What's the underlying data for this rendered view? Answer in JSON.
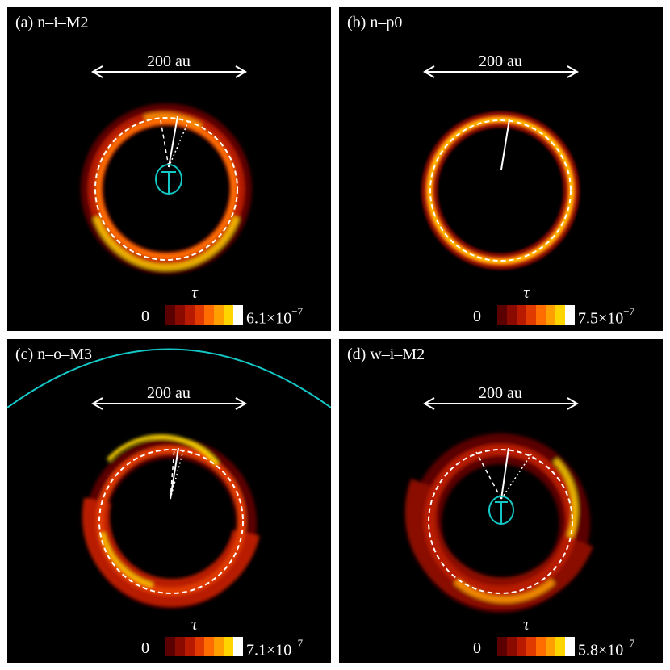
{
  "colormap": [
    "#5a0000",
    "#8a0a00",
    "#b81a00",
    "#e03a00",
    "#ff6c00",
    "#ffa000",
    "#ffd500",
    "#ffffff"
  ],
  "disk_colors": {
    "background": "#000000",
    "ellipse": "#14c8c8"
  },
  "panels": [
    {
      "label": "(a) n–i–M2",
      "scale_label": "200 au",
      "tau_symbol": "τ",
      "cb_min": "0",
      "cb_max_mantissa": "6.1×10",
      "cb_max_exp": "−7"
    },
    {
      "label": "(b) n–p0",
      "scale_label": "200 au",
      "tau_symbol": "τ",
      "cb_min": "0",
      "cb_max_mantissa": "7.5×10",
      "cb_max_exp": "−7"
    },
    {
      "label": "(c) n–o–M3",
      "scale_label": "200 au",
      "tau_symbol": "τ",
      "cb_min": "0",
      "cb_max_mantissa": "7.1×10",
      "cb_max_exp": "−7"
    },
    {
      "label": "(d) w–i–M2",
      "scale_label": "200 au",
      "tau_symbol": "τ",
      "cb_min": "0",
      "cb_max_mantissa": "5.8×10",
      "cb_max_exp": "−7"
    }
  ]
}
